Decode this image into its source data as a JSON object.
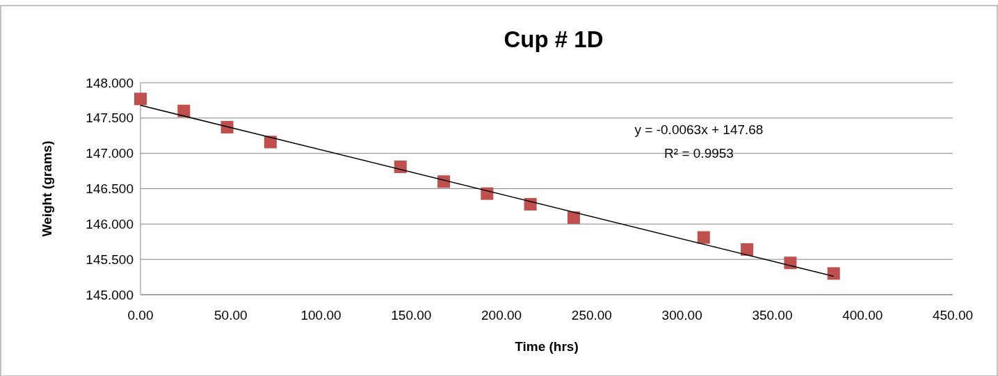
{
  "chart_data": {
    "type": "scatter",
    "title": "Cup # 1D",
    "xlabel": "Time (hrs)",
    "ylabel": "Weight (grams)",
    "xlim": [
      0,
      450
    ],
    "ylim": [
      145,
      148
    ],
    "xticks": [
      {
        "value": 0,
        "label": "0.00"
      },
      {
        "value": 50,
        "label": "50.00"
      },
      {
        "value": 100,
        "label": "100.00"
      },
      {
        "value": 150,
        "label": "150.00"
      },
      {
        "value": 200,
        "label": "200.00"
      },
      {
        "value": 250,
        "label": "250.00"
      },
      {
        "value": 300,
        "label": "300.00"
      },
      {
        "value": 350,
        "label": "350.00"
      },
      {
        "value": 400,
        "label": "400.00"
      },
      {
        "value": 450,
        "label": "450.00"
      }
    ],
    "yticks": [
      {
        "value": 145,
        "label": "145.000"
      },
      {
        "value": 145.5,
        "label": "145.500"
      },
      {
        "value": 146,
        "label": "146.000"
      },
      {
        "value": 146.5,
        "label": "146.500"
      },
      {
        "value": 147,
        "label": "147.000"
      },
      {
        "value": 147.5,
        "label": "147.500"
      },
      {
        "value": 148,
        "label": "148.000"
      }
    ],
    "grid": "y",
    "marker": "square",
    "series": [
      {
        "color": "#c0504d",
        "x": [
          0,
          24,
          48,
          72,
          144,
          168,
          192,
          216,
          240,
          312,
          336,
          360,
          384
        ],
        "values": [
          147.77,
          147.6,
          147.37,
          147.16,
          146.81,
          146.6,
          146.43,
          146.28,
          146.09,
          145.81,
          145.64,
          145.45,
          145.3
        ]
      },
      {
        "type": "line",
        "color": "#000000",
        "marker": "none",
        "x": [
          0,
          384
        ],
        "values": [
          147.68,
          145.26
        ]
      }
    ],
    "annotations": [
      "y = -0.0063x + 147.68",
      "R² = 0.9953"
    ]
  }
}
